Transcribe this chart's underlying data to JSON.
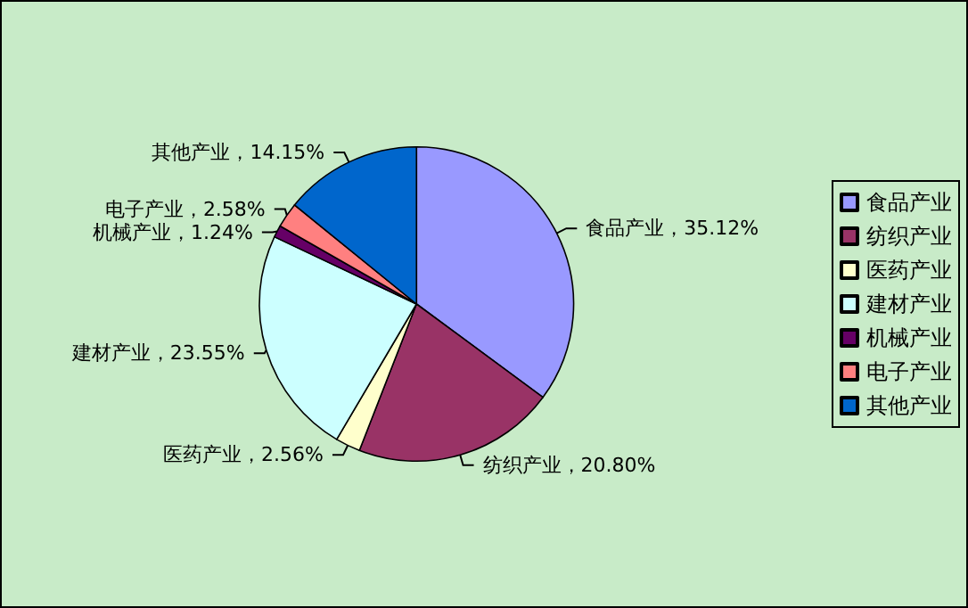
{
  "chart_data": {
    "type": "pie",
    "categories": [
      "食品产业",
      "纺织产业",
      "医药产业",
      "建材产业",
      "机械产业",
      "电子产业",
      "其他产业"
    ],
    "values": [
      35.12,
      20.8,
      2.56,
      23.55,
      1.24,
      2.58,
      14.15
    ],
    "colors": [
      "#9999ff",
      "#993366",
      "#ffffcc",
      "#ccffff",
      "#660066",
      "#ff8080",
      "#0066cc"
    ],
    "value_labels": [
      "食品产业，35.12%",
      "纺织产业，20.80%",
      "医药产业，2.56%",
      "建材产业，23.55%",
      "机械产业，1.24%",
      "电子产业，2.58%",
      "其他产业，14.15%"
    ],
    "legend": "right"
  }
}
